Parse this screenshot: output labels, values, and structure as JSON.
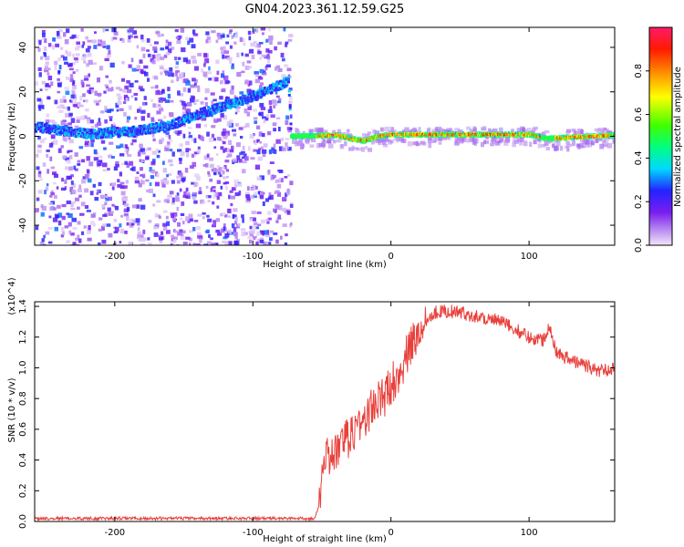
{
  "title": "GN04.2023.361.12.59.G25",
  "colorbar": {
    "label": "Normalized spectral amplitude",
    "ticks": [
      0.0,
      0.2,
      0.4,
      0.6,
      0.8
    ],
    "tick_labels": [
      "0.0",
      "0.2",
      "0.4",
      "0.6",
      "0.8"
    ],
    "range": [
      0,
      1
    ]
  },
  "chart_data": [
    {
      "type": "heatmap",
      "xlabel": "Height of straight line (km)",
      "ylabel": "Frequency (Hz)",
      "xlim": [
        -258,
        162
      ],
      "ylim": [
        -49,
        49
      ],
      "xticks": [
        -200,
        -100,
        0,
        100
      ],
      "xtick_labels": [
        "-200",
        "-100",
        "0",
        "100"
      ],
      "yticks": [
        -40,
        -20,
        0,
        20,
        40
      ],
      "ytick_labels": [
        "-40",
        "-20",
        "0",
        "20",
        "40"
      ],
      "grid": false,
      "colormap": "rainbow (violet low to red high)",
      "trend_line_points": [
        {
          "x": -255,
          "y": 4
        },
        {
          "x": -220,
          "y": 1
        },
        {
          "x": -190,
          "y": 2
        },
        {
          "x": -160,
          "y": 5
        },
        {
          "x": -140,
          "y": 10
        },
        {
          "x": -120,
          "y": 14
        },
        {
          "x": -100,
          "y": 18
        },
        {
          "x": -85,
          "y": 22
        },
        {
          "x": -75,
          "y": 25
        },
        {
          "x": -73,
          "y": 0
        },
        {
          "x": -40,
          "y": 0.5
        },
        {
          "x": -30,
          "y": -1
        },
        {
          "x": -20,
          "y": -2
        },
        {
          "x": -10,
          "y": 0
        },
        {
          "x": 0,
          "y": 0.8
        },
        {
          "x": 100,
          "y": 0.8
        },
        {
          "x": 112,
          "y": -1
        },
        {
          "x": 162,
          "y": 0.5
        }
      ]
    },
    {
      "type": "line",
      "xlabel": "Height of straight line (km)",
      "ylabel": "SNR (10 * v/v)",
      "y_multiplier_label": "(x10^4)",
      "xlim": [
        -258,
        162
      ],
      "ylim": [
        0,
        1.43
      ],
      "xticks": [
        -200,
        -100,
        0,
        100
      ],
      "xtick_labels": [
        "-200",
        "-100",
        "0",
        "100"
      ],
      "yticks": [
        0.0,
        0.2,
        0.4,
        0.6,
        0.8,
        1.0,
        1.2,
        1.4
      ],
      "ytick_labels": [
        "0.0",
        "0.2",
        "0.4",
        "0.6",
        "0.8",
        "1.0",
        "1.2",
        "1.4"
      ],
      "grid": false,
      "series": [
        {
          "color": "#e8413c",
          "points": [
            {
              "x": -258,
              "y": 0.02
            },
            {
              "x": -200,
              "y": 0.02
            },
            {
              "x": -100,
              "y": 0.02
            },
            {
              "x": -55,
              "y": 0.02
            },
            {
              "x": -52,
              "y": 0.1
            },
            {
              "x": -50,
              "y": 0.35
            },
            {
              "x": -45,
              "y": 0.42
            },
            {
              "x": -40,
              "y": 0.45
            },
            {
              "x": -35,
              "y": 0.5
            },
            {
              "x": -30,
              "y": 0.55
            },
            {
              "x": -25,
              "y": 0.62
            },
            {
              "x": -20,
              "y": 0.65
            },
            {
              "x": -15,
              "y": 0.72
            },
            {
              "x": -10,
              "y": 0.78
            },
            {
              "x": -5,
              "y": 0.8
            },
            {
              "x": 0,
              "y": 0.9
            },
            {
              "x": 5,
              "y": 0.95
            },
            {
              "x": 10,
              "y": 1.05
            },
            {
              "x": 15,
              "y": 1.15
            },
            {
              "x": 20,
              "y": 1.22
            },
            {
              "x": 25,
              "y": 1.3
            },
            {
              "x": 30,
              "y": 1.36
            },
            {
              "x": 40,
              "y": 1.37
            },
            {
              "x": 50,
              "y": 1.36
            },
            {
              "x": 60,
              "y": 1.34
            },
            {
              "x": 70,
              "y": 1.32
            },
            {
              "x": 80,
              "y": 1.3
            },
            {
              "x": 90,
              "y": 1.25
            },
            {
              "x": 100,
              "y": 1.2
            },
            {
              "x": 110,
              "y": 1.18
            },
            {
              "x": 115,
              "y": 1.28
            },
            {
              "x": 120,
              "y": 1.1
            },
            {
              "x": 130,
              "y": 1.05
            },
            {
              "x": 140,
              "y": 1.02
            },
            {
              "x": 150,
              "y": 0.98
            },
            {
              "x": 162,
              "y": 1.0
            }
          ]
        }
      ]
    }
  ]
}
